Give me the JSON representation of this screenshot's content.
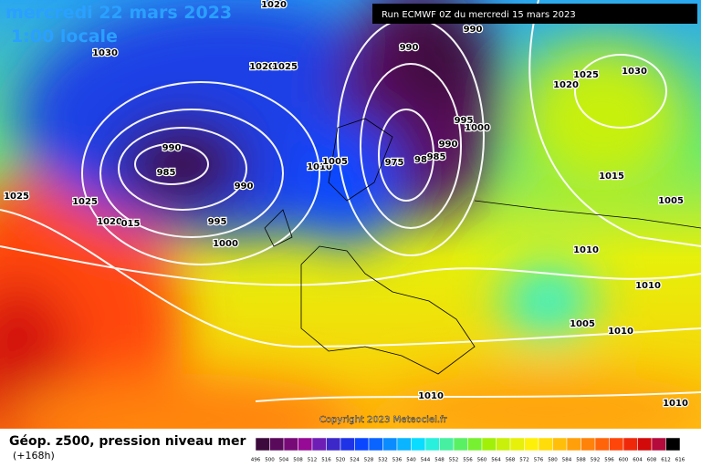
{
  "header": {
    "date": "mercredi 22 mars 2023",
    "time": "1:00 locale",
    "run": "Run ECMWF 0Z du mercredi 15 mars 2023"
  },
  "footer": {
    "title": "Géop. z500, pression niveau mer",
    "lead": "(+168h)",
    "copyright": "Copyright 2023 Meteociel.fr"
  },
  "isobar_labels": [
    "1020",
    "1030",
    "1020",
    "1025",
    "990",
    "990",
    "1025",
    "1030",
    "1020",
    "995",
    "1000",
    "990",
    "985",
    "1010",
    "1005",
    "975",
    "98",
    "985",
    "990",
    "990",
    "1015",
    "1025",
    "1025",
    "1020",
    "015",
    "995",
    "1000",
    "1005",
    "1010",
    "1010",
    "1005",
    "1010",
    "1010",
    "1010"
  ],
  "legend": {
    "labels": [
      496,
      500,
      504,
      508,
      512,
      516,
      520,
      524,
      528,
      532,
      536,
      540,
      544,
      548,
      552,
      556,
      560,
      564,
      568,
      572,
      576,
      580,
      584,
      588,
      592,
      596,
      600,
      604,
      608,
      612,
      616
    ],
    "colors": [
      "#3c0a3c",
      "#5a0a5a",
      "#780a78",
      "#960a96",
      "#6e1eb4",
      "#3c28c8",
      "#1e32e6",
      "#0a46ff",
      "#0a64ff",
      "#0a8cff",
      "#0ab4ff",
      "#0adcff",
      "#28f0dc",
      "#46f0a0",
      "#5af064",
      "#78f032",
      "#a0f00a",
      "#c8f00a",
      "#e6f00a",
      "#fff00a",
      "#ffdc0a",
      "#ffbe0a",
      "#ffa00a",
      "#ff820a",
      "#ff640a",
      "#ff460a",
      "#f0280a",
      "#d20a0a",
      "#b40a3c",
      "#000000"
    ]
  }
}
